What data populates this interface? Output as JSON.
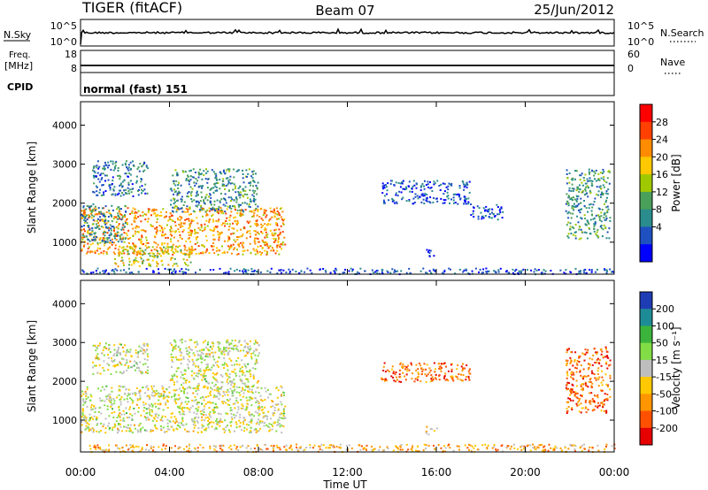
{
  "header": {
    "title_left": "TIGER (fitACF)",
    "title_center": "Beam 07",
    "title_right": "25/Jun/2012"
  },
  "panels": {
    "nsky": {
      "label": "N.Sky",
      "left_ticks": [
        "10^5",
        "10^0"
      ],
      "right_ticks": [
        "10^5",
        "10^0"
      ],
      "right_label": "N.Search"
    },
    "freq": {
      "label_line1": "Freq.",
      "label_line2": "[MHz]",
      "left_ticks": [
        "18",
        "8"
      ],
      "right_ticks": [
        "60",
        "0"
      ],
      "right_label": "Nave"
    },
    "cpid": {
      "label": "CPID",
      "text": "normal (fast) 151"
    }
  },
  "power_colorbar": {
    "label": "Power [dB]",
    "ticks": [
      "28",
      "24",
      "20",
      "16",
      "12",
      "8",
      "4"
    ],
    "colors": [
      "#ff0000",
      "#ff4000",
      "#ff8c00",
      "#ffc800",
      "#a0c800",
      "#4aa05a",
      "#2a8c8c",
      "#1e50c0",
      "#0000ff"
    ]
  },
  "velocity_colorbar": {
    "label": "Velocity [m s⁻¹]",
    "ticks": [
      "200",
      "100",
      "50",
      "15",
      "-15",
      "-50",
      "-100",
      "-200"
    ],
    "colors": [
      "#1e3cb4",
      "#1e8c96",
      "#3cb43c",
      "#82dc46",
      "#bebebe",
      "#ffc800",
      "#ff9600",
      "#ff5000",
      "#e60000"
    ]
  },
  "chart_data": [
    {
      "type": "heatmap",
      "name": "power",
      "ylabel": "Slant Range [km]",
      "ylim": [
        180,
        4600
      ],
      "yticks": [
        1000,
        2000,
        3000,
        4000
      ],
      "xlim": [
        0,
        24
      ],
      "xticks": [
        "00:00",
        "04:00",
        "08:00",
        "12:00",
        "16:00",
        "20:00",
        "00:00"
      ],
      "zlim": [
        0,
        32
      ],
      "regions": [
        {
          "x": [
            0.0,
            9.2
          ],
          "y": [
            700,
            1900
          ],
          "z": 22
        },
        {
          "x": [
            0.0,
            2.0
          ],
          "y": [
            1000,
            2000
          ],
          "z": 9
        },
        {
          "x": [
            0.5,
            3.0
          ],
          "y": [
            2200,
            3100
          ],
          "z": 8
        },
        {
          "x": [
            4.0,
            8.0
          ],
          "y": [
            1800,
            2900
          ],
          "z": 10
        },
        {
          "x": [
            1.5,
            5.0
          ],
          "y": [
            400,
            900
          ],
          "z": 18
        },
        {
          "x": [
            13.5,
            17.5
          ],
          "y": [
            2000,
            2600
          ],
          "z": 5
        },
        {
          "x": [
            15.5,
            16.0
          ],
          "y": [
            650,
            850
          ],
          "z": 4
        },
        {
          "x": [
            17.5,
            19.0
          ],
          "y": [
            1600,
            2000
          ],
          "z": 5
        },
        {
          "x": [
            21.8,
            23.8
          ],
          "y": [
            1100,
            2900
          ],
          "z": 11
        },
        {
          "x": [
            0.0,
            24.0
          ],
          "y": [
            200,
            350
          ],
          "z": 5
        }
      ]
    },
    {
      "type": "heatmap",
      "name": "velocity",
      "ylabel": "Slant Range [km]",
      "xlabel": "Time UT",
      "ylim": [
        180,
        4600
      ],
      "yticks": [
        1000,
        2000,
        3000,
        4000
      ],
      "xlim": [
        0,
        24
      ],
      "xticks": [
        "00:00",
        "04:00",
        "08:00",
        "12:00",
        "16:00",
        "20:00",
        "00:00"
      ],
      "zlim": [
        -250,
        250
      ],
      "regions": [
        {
          "x": [
            0.0,
            9.2
          ],
          "y": [
            700,
            1900
          ],
          "z": 0
        },
        {
          "x": [
            4.0,
            8.0
          ],
          "y": [
            1800,
            3100
          ],
          "z": 0
        },
        {
          "x": [
            0.5,
            3.0
          ],
          "y": [
            2200,
            3000
          ],
          "z": 0
        },
        {
          "x": [
            13.5,
            17.5
          ],
          "y": [
            2000,
            2500
          ],
          "z": -150
        },
        {
          "x": [
            15.5,
            16.0
          ],
          "y": [
            650,
            850
          ],
          "z": -50
        },
        {
          "x": [
            21.8,
            23.8
          ],
          "y": [
            1200,
            2900
          ],
          "z": -150
        },
        {
          "x": [
            0.0,
            24.0
          ],
          "y": [
            200,
            400
          ],
          "z": -80
        }
      ]
    }
  ]
}
